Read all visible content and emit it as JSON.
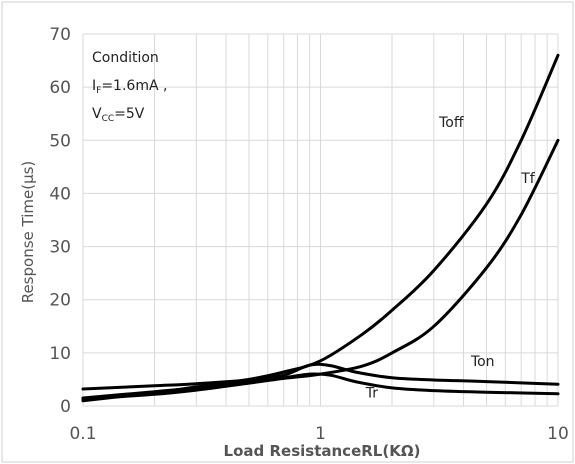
{
  "chart_data": {
    "type": "line",
    "title": "",
    "xlabel": "Load ResistanceRL(KΩ)",
    "ylabel": "Response Time(μs)",
    "x_scale": "log",
    "xlim": [
      0.1,
      10
    ],
    "ylim": [
      0,
      70
    ],
    "x_ticks": [
      "0.1",
      "1",
      "10"
    ],
    "y_ticks": [
      "0",
      "10",
      "20",
      "30",
      "40",
      "50",
      "60",
      "70"
    ],
    "grid": true,
    "annotation": {
      "line1": "Condition",
      "line2_main": "I",
      "line2_sub": "F",
      "line2_rest": "=1.6mA ,",
      "line3_main": "V",
      "line3_sub": "CC",
      "line3_rest": "=5V"
    },
    "series": [
      {
        "name": "Toff",
        "points": [
          [
            0.1,
            1.0
          ],
          [
            0.2,
            2.5
          ],
          [
            0.3,
            3.6
          ],
          [
            0.5,
            5.0
          ],
          [
            0.7,
            6.4
          ],
          [
            1.0,
            8.5
          ],
          [
            1.5,
            13.5
          ],
          [
            2.0,
            18.0
          ],
          [
            3.0,
            25.5
          ],
          [
            5.0,
            38.0
          ],
          [
            7.0,
            50.0
          ],
          [
            10.0,
            66.0
          ]
        ]
      },
      {
        "name": "Tf",
        "points": [
          [
            0.1,
            1.3
          ],
          [
            0.2,
            2.2
          ],
          [
            0.3,
            3.0
          ],
          [
            0.5,
            4.3
          ],
          [
            0.7,
            5.2
          ],
          [
            1.0,
            6.0
          ],
          [
            1.5,
            7.5
          ],
          [
            2.0,
            10.0
          ],
          [
            3.0,
            15.0
          ],
          [
            5.0,
            26.0
          ],
          [
            7.0,
            36.0
          ],
          [
            10.0,
            50.0
          ]
        ]
      },
      {
        "name": "Ton",
        "points": [
          [
            0.1,
            3.2
          ],
          [
            0.2,
            3.8
          ],
          [
            0.3,
            4.2
          ],
          [
            0.5,
            4.9
          ],
          [
            0.7,
            5.8
          ],
          [
            0.9,
            7.7
          ],
          [
            1.1,
            7.6
          ],
          [
            1.4,
            6.4
          ],
          [
            2.0,
            5.3
          ],
          [
            3.0,
            4.9
          ],
          [
            5.0,
            4.6
          ],
          [
            10.0,
            4.1
          ]
        ]
      },
      {
        "name": "Tr",
        "points": [
          [
            0.1,
            1.5
          ],
          [
            0.2,
            2.7
          ],
          [
            0.3,
            3.4
          ],
          [
            0.5,
            4.5
          ],
          [
            0.7,
            5.3
          ],
          [
            0.9,
            6.0
          ],
          [
            1.1,
            5.8
          ],
          [
            1.4,
            4.6
          ],
          [
            2.0,
            3.4
          ],
          [
            3.0,
            2.9
          ],
          [
            5.0,
            2.6
          ],
          [
            10.0,
            2.3
          ]
        ]
      }
    ]
  }
}
